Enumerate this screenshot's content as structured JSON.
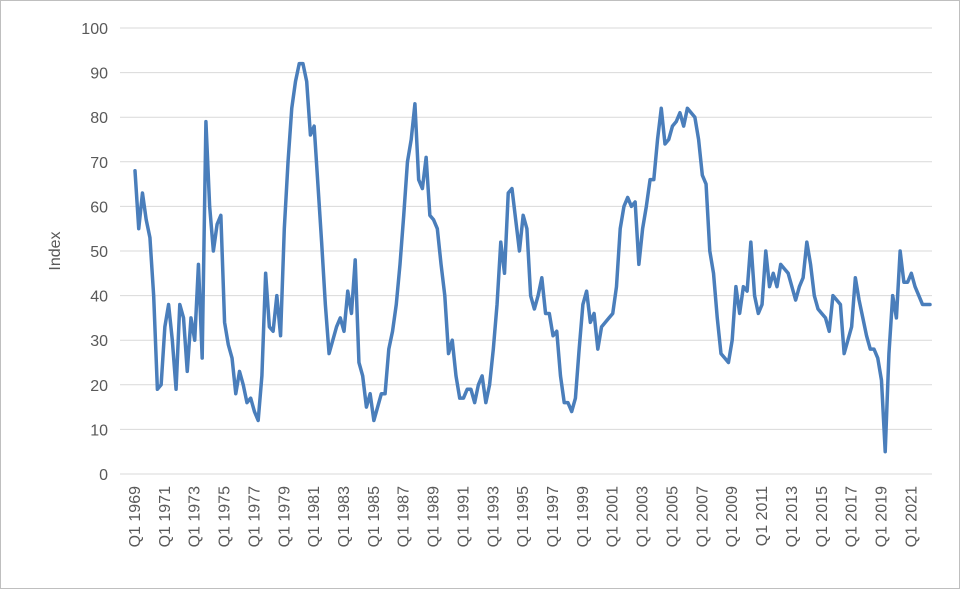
{
  "chart_data": {
    "type": "line",
    "y_label": "Index",
    "categories": [
      "Q1 1969",
      null,
      null,
      null,
      null,
      null,
      null,
      null,
      "Q1 1971",
      null,
      null,
      null,
      null,
      null,
      null,
      null,
      "Q1 1973",
      null,
      null,
      null,
      null,
      null,
      null,
      null,
      "Q1 1975",
      null,
      null,
      null,
      null,
      null,
      null,
      null,
      "Q1 1977",
      null,
      null,
      null,
      null,
      null,
      null,
      null,
      "Q1 1979",
      null,
      null,
      null,
      null,
      null,
      null,
      null,
      "Q1 1981",
      null,
      null,
      null,
      null,
      null,
      null,
      null,
      "Q1 1983",
      null,
      null,
      null,
      null,
      null,
      null,
      null,
      "Q1 1985",
      null,
      null,
      null,
      null,
      null,
      null,
      null,
      "Q1 1987",
      null,
      null,
      null,
      null,
      null,
      null,
      null,
      "Q1 1989",
      null,
      null,
      null,
      null,
      null,
      null,
      null,
      "Q1 1991",
      null,
      null,
      null,
      null,
      null,
      null,
      null,
      "Q1 1993",
      null,
      null,
      null,
      null,
      null,
      null,
      null,
      "Q1 1995",
      null,
      null,
      null,
      null,
      null,
      null,
      null,
      "Q1 1997",
      null,
      null,
      null,
      null,
      null,
      null,
      null,
      "Q1 1999",
      null,
      null,
      null,
      null,
      null,
      null,
      null,
      "Q1 2001",
      null,
      null,
      null,
      null,
      null,
      null,
      null,
      "Q1 2003",
      null,
      null,
      null,
      null,
      null,
      null,
      null,
      "Q1 2005",
      null,
      null,
      null,
      null,
      null,
      null,
      null,
      "Q1 2007",
      null,
      null,
      null,
      null,
      null,
      null,
      null,
      "Q1 2009",
      null,
      null,
      null,
      null,
      null,
      null,
      null,
      "Q1 2011",
      null,
      null,
      null,
      null,
      null,
      null,
      null,
      "Q1 2013",
      null,
      null,
      null,
      null,
      null,
      null,
      null,
      "Q1 2015",
      null,
      null,
      null,
      null,
      null,
      null,
      null,
      "Q1 2017",
      null,
      null,
      null,
      null,
      null,
      null,
      null,
      "Q1 2019",
      null,
      null,
      null,
      null,
      null,
      null,
      null,
      "Q1 2021",
      null,
      null,
      null,
      null,
      null
    ],
    "series": [
      {
        "name": "Index",
        "color": "#4a7ebb",
        "values": [
          68,
          55,
          63,
          57,
          53,
          40,
          19,
          20,
          33,
          38,
          30,
          19,
          38,
          35,
          23,
          35,
          30,
          47,
          26,
          79,
          60,
          50,
          56,
          58,
          34,
          29,
          26,
          18,
          23,
          20,
          16,
          17,
          14,
          12,
          22,
          45,
          33,
          32,
          40,
          31,
          55,
          70,
          82,
          88,
          92,
          92,
          88,
          76,
          78,
          65,
          52,
          38,
          27,
          30,
          33,
          35,
          32,
          41,
          36,
          48,
          25,
          22,
          15,
          18,
          12,
          15,
          18,
          18,
          28,
          32,
          38,
          47,
          58,
          70,
          75,
          83,
          66,
          64,
          71,
          58,
          57,
          55,
          47,
          40,
          27,
          30,
          22,
          17,
          17,
          19,
          19,
          16,
          20,
          22,
          16,
          20,
          28,
          38,
          52,
          45,
          63,
          64,
          57,
          50,
          58,
          55,
          40,
          37,
          40,
          44,
          36,
          36,
          31,
          32,
          22,
          16,
          16,
          14,
          17,
          28,
          38,
          41,
          34,
          36,
          28,
          33,
          34,
          35,
          36,
          42,
          55,
          60,
          62,
          60,
          61,
          47,
          55,
          60,
          66,
          66,
          75,
          82,
          74,
          75,
          78,
          79,
          81,
          78,
          82,
          81,
          80,
          75,
          67,
          65,
          50,
          45,
          35,
          27,
          26,
          25,
          30,
          42,
          36,
          42,
          41,
          52,
          40,
          36,
          38,
          50,
          42,
          45,
          42,
          47,
          46,
          45,
          42,
          39,
          42,
          44,
          52,
          47,
          40,
          37,
          36,
          35,
          32,
          40,
          39,
          38,
          27,
          30,
          33,
          44,
          39,
          35,
          31,
          28,
          28,
          26,
          21,
          5,
          27,
          40,
          35,
          50,
          43,
          43,
          45,
          42,
          40,
          38,
          38,
          38
        ]
      }
    ],
    "ylim": [
      0,
      100
    ],
    "yticks": [
      0,
      10,
      20,
      30,
      40,
      50,
      60,
      70,
      80,
      90,
      100
    ],
    "grid": true
  }
}
